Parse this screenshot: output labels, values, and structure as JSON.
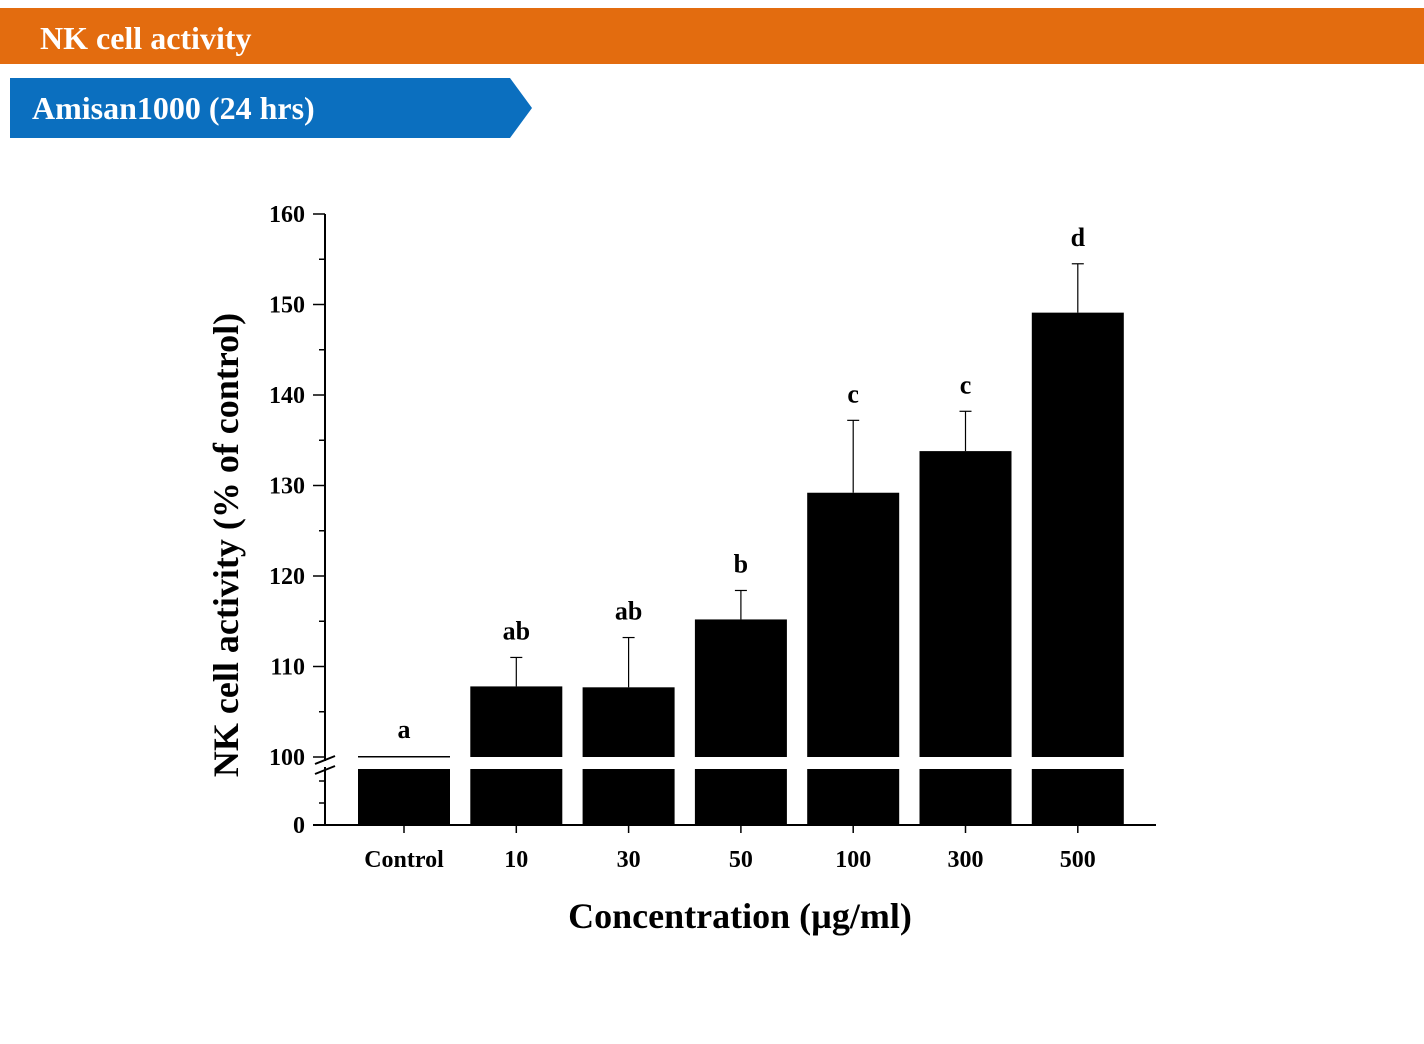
{
  "header": {
    "title": "NK cell activity"
  },
  "banner": {
    "label": "Amisan1000 (24 hrs)"
  },
  "colors": {
    "header_bar": "#e36c0f",
    "banner": "#0b6fbf",
    "bars": "#000000"
  },
  "chart_data": {
    "type": "bar",
    "title": "",
    "xlabel": "Concentration (µg/ml)",
    "ylabel": "NK cell activity (% of control)",
    "categories": [
      "Control",
      "10",
      "30",
      "50",
      "100",
      "300",
      "500"
    ],
    "values": [
      100,
      107.8,
      107.7,
      115.2,
      129.2,
      133.8,
      149.1
    ],
    "errors": [
      0,
      3.2,
      5.5,
      3.2,
      8.0,
      4.4,
      5.4
    ],
    "significance_labels": [
      "a",
      "ab",
      "ab",
      "b",
      "c",
      "c",
      "d"
    ],
    "y_ticks": [
      "0",
      "100",
      "110",
      "120",
      "130",
      "140",
      "150",
      "160"
    ],
    "ylim": [
      0,
      160
    ],
    "axis_break": [
      0,
      100
    ],
    "grid": false,
    "legend": "none"
  }
}
